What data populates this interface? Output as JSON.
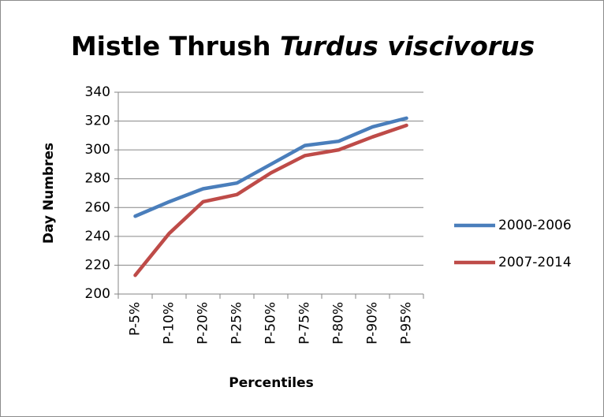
{
  "chart_data": {
    "type": "line",
    "title": [
      "Mistle Thrush",
      "Turdus viscivorus"
    ],
    "x_label": "Percentiles",
    "y_label": "Day Numbres",
    "categories": [
      "P-5%",
      "P-10%",
      "P-20%",
      "P-25%",
      "P-50%",
      "P-75%",
      "P-80%",
      "P-90%",
      "P-95%"
    ],
    "series": [
      {
        "name": "2000-2006",
        "color": "#4a7ebb",
        "values": [
          254,
          264,
          273,
          277,
          290,
          303,
          306,
          316,
          322
        ]
      },
      {
        "name": "2007-2014",
        "color": "#be4b48",
        "values": [
          213,
          242,
          264,
          269,
          284,
          296,
          300,
          309,
          317
        ]
      }
    ],
    "ylim": [
      200,
      340
    ],
    "yticks": [
      200,
      220,
      240,
      260,
      280,
      300,
      320,
      340
    ],
    "grid": true,
    "legend": "right"
  }
}
